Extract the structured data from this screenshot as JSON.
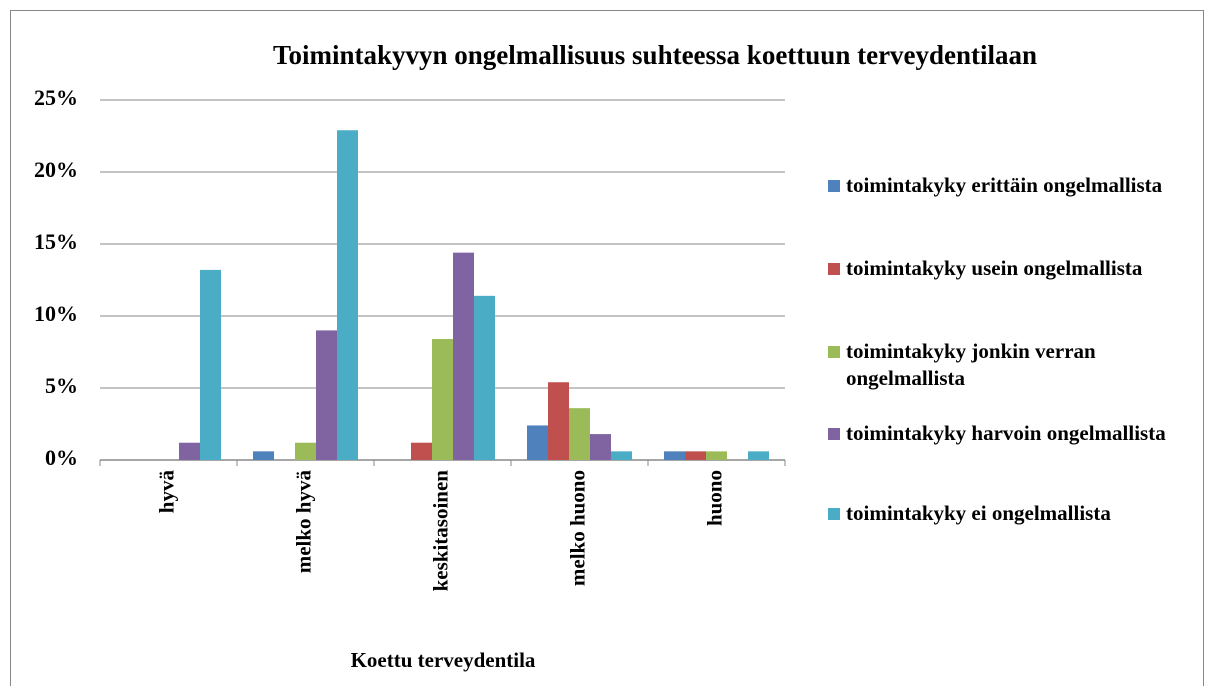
{
  "chart_data": {
    "type": "bar",
    "title": "Toimintakyvyn ongelmallisuus suhteessa koettuun terveydentilaan",
    "x_label": "Koettu terveydentila",
    "categories": [
      "hyvä",
      "melko hyvä",
      "keskitasoinen",
      "melko huono",
      "huono"
    ],
    "series": [
      {
        "name": "toimintakyky erittäin ongelmallista",
        "color": "#4f81bd",
        "values": [
          0,
          0.6,
          0,
          2.4,
          0.6
        ]
      },
      {
        "name": "toimintakyky usein ongelmallista",
        "color": "#c0504d",
        "values": [
          0,
          0,
          1.2,
          5.4,
          0.6
        ]
      },
      {
        "name": "toimintakyky jonkin verran ongelmallista",
        "color": "#9bbb59",
        "values": [
          0,
          1.2,
          8.4,
          3.6,
          0.6
        ]
      },
      {
        "name": "toimintakyky harvoin ongelmallista",
        "color": "#8064a2",
        "values": [
          1.2,
          9.0,
          14.4,
          1.8,
          0
        ]
      },
      {
        "name": "toimintakyky ei ongelmallista",
        "color": "#4bacc6",
        "values": [
          13.2,
          22.9,
          11.4,
          0.6,
          0.6
        ]
      }
    ],
    "ylim": [
      0,
      25
    ],
    "yticks": [
      {
        "value": 0,
        "label": "0%"
      },
      {
        "value": 5,
        "label": "5%"
      },
      {
        "value": 10,
        "label": "10%"
      },
      {
        "value": 15,
        "label": "15%"
      },
      {
        "value": 20,
        "label": "20%"
      },
      {
        "value": 25,
        "label": "25%"
      }
    ],
    "grid": true,
    "legend": "right"
  }
}
